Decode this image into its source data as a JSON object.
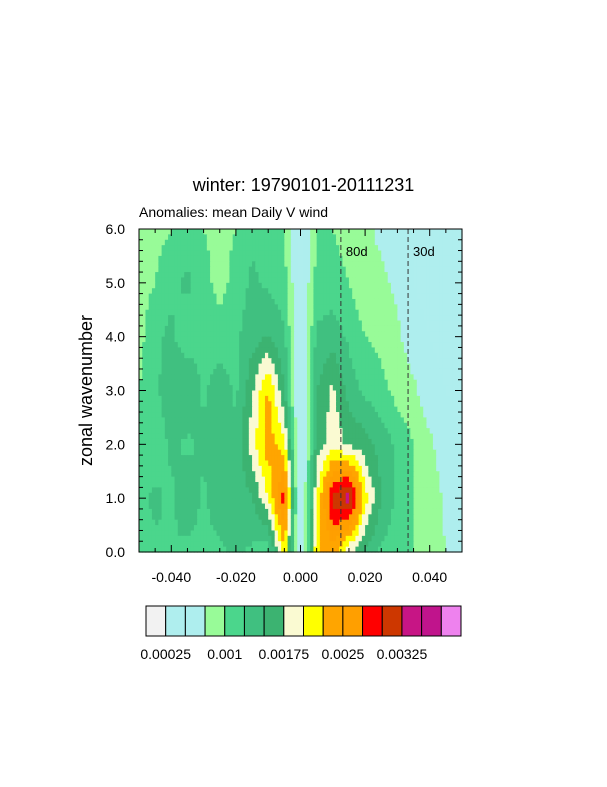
{
  "chart_data": {
    "type": "heatmap",
    "title": "winter: 19790101-20111231",
    "subtitle": "Anomalies: mean Daily V wind",
    "xlabel": "",
    "ylabel": "zonal wavenumber",
    "xlim": [
      -0.05,
      0.05
    ],
    "ylim": [
      0,
      6
    ],
    "x_ticks": [
      -0.04,
      -0.02,
      0.0,
      0.02,
      0.04
    ],
    "x_tick_labels": [
      "-0.040",
      "-0.020",
      "0.000",
      "0.020",
      "0.040"
    ],
    "y_ticks": [
      0,
      1,
      2,
      3,
      4,
      5,
      6
    ],
    "y_tick_labels": [
      "0.0",
      "1.0",
      "2.0",
      "3.0",
      "4.0",
      "5.0",
      "6.0"
    ],
    "x": [
      -0.05,
      -0.045,
      -0.04,
      -0.035,
      -0.03,
      -0.025,
      -0.02,
      -0.015,
      -0.01,
      -0.005,
      0.0,
      0.005,
      0.01,
      0.015,
      0.02,
      0.025,
      0.03,
      0.035,
      0.04,
      0.045,
      0.05
    ],
    "y": [
      0,
      1,
      2,
      3,
      4,
      5,
      6
    ],
    "z": [
      [
        0.0011,
        0.0012,
        0.00125,
        0.0012,
        0.0012,
        0.0012,
        0.0013,
        0.0012,
        0.0011,
        0.0022,
        0.0003,
        0.0022,
        0.0024,
        0.0018,
        0.0015,
        0.0012,
        0.0011,
        0.001,
        0.0009,
        0.00075,
        0.0006
      ],
      [
        0.0012,
        0.0013,
        0.0012,
        0.0014,
        0.0012,
        0.0014,
        0.0013,
        0.0015,
        0.002,
        0.0029,
        0.00025,
        0.002,
        0.0031,
        0.0034,
        0.0021,
        0.0015,
        0.0012,
        0.001,
        0.0009,
        0.0007,
        0.0006
      ],
      [
        0.001,
        0.0011,
        0.0013,
        0.0012,
        0.0013,
        0.0014,
        0.0013,
        0.0019,
        0.0024,
        0.0021,
        0.0003,
        0.0016,
        0.0019,
        0.0017,
        0.0016,
        0.0014,
        0.0012,
        0.001,
        0.0008,
        0.0006,
        0.0005
      ],
      [
        0.001,
        0.0012,
        0.0014,
        0.0015,
        0.0012,
        0.0014,
        0.0012,
        0.0017,
        0.0023,
        0.0015,
        0.0003,
        0.0015,
        0.0018,
        0.0014,
        0.0012,
        0.0011,
        0.0009,
        0.0008,
        0.0006,
        0.0005,
        0.0004
      ],
      [
        0.0009,
        0.0012,
        0.0013,
        0.0011,
        0.0012,
        0.0011,
        0.0012,
        0.0014,
        0.0015,
        0.0013,
        0.0004,
        0.0013,
        0.0014,
        0.0012,
        0.001,
        0.0009,
        0.0008,
        0.0006,
        0.0005,
        0.0004,
        0.0004
      ],
      [
        0.0009,
        0.001,
        0.0012,
        0.0013,
        0.0011,
        0.0009,
        0.0011,
        0.0013,
        0.0012,
        0.0011,
        0.0004,
        0.0011,
        0.0011,
        0.001,
        0.0008,
        0.0008,
        0.0007,
        0.0005,
        0.0004,
        0.0004,
        0.0004
      ],
      [
        0.0008,
        0.0009,
        0.001,
        0.0011,
        0.001,
        0.0009,
        0.001,
        0.0012,
        0.0011,
        0.001,
        0.0004,
        0.001,
        0.001,
        0.0009,
        0.0008,
        0.0007,
        0.0006,
        0.0005,
        0.0004,
        0.0004,
        0.0004
      ]
    ],
    "contour_levels": [
      0.00025,
      0.0005,
      0.00075,
      0.001,
      0.00125,
      0.0015,
      0.00175,
      0.002,
      0.00225,
      0.0025,
      0.00275,
      0.003,
      0.00325,
      0.0035,
      0.00375
    ],
    "colors": [
      "#f2f2f2",
      "#afeeee",
      "#aeeeee",
      "#98fb98",
      "#4bd68c",
      "#40c080",
      "#3cb371",
      "#fafad2",
      "#ffff00",
      "#ffa500",
      "#ff9f00",
      "#ff0000",
      "#cd3700",
      "#c71585",
      "#c0148c",
      "#ee82ee"
    ],
    "colorbar_labels": [
      {
        "level": 0.00025,
        "text": "0.00025"
      },
      {
        "level": 0.001,
        "text": "0.001"
      },
      {
        "level": 0.00175,
        "text": "0.00175"
      },
      {
        "level": 0.0025,
        "text": "0.0025"
      },
      {
        "level": 0.00325,
        "text": "0.00325"
      }
    ],
    "reference_lines": [
      {
        "x": 0.0125,
        "label": "80d"
      },
      {
        "x": 0.0333,
        "label": "30d"
      }
    ],
    "grid": false,
    "colorbar": "bottom"
  }
}
